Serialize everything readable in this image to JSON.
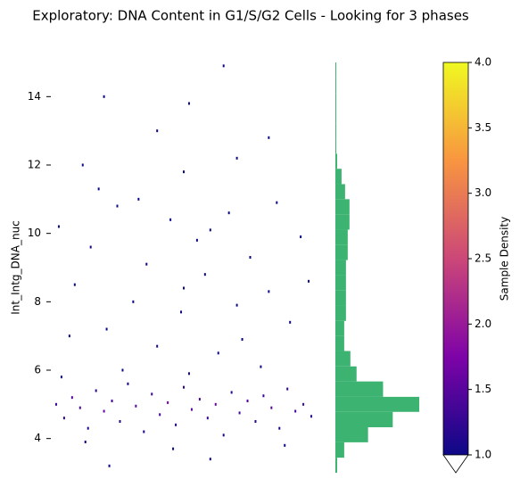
{
  "chart_data": {
    "type": "scatter",
    "title": "Exploratory: DNA Content in G1/S/G2 Cells - Looking for 3 phases",
    "y_label": "Int_Intg_DNA_nuc",
    "ylim": [
      3.0,
      15.0
    ],
    "yticks": [
      4,
      6,
      8,
      10,
      12,
      14
    ],
    "xlim": [
      0,
      1
    ],
    "points": {
      "x": [
        0.02,
        0.05,
        0.08,
        0.11,
        0.14,
        0.17,
        0.2,
        0.23,
        0.26,
        0.29,
        0.32,
        0.35,
        0.38,
        0.41,
        0.44,
        0.47,
        0.5,
        0.53,
        0.56,
        0.59,
        0.62,
        0.65,
        0.68,
        0.71,
        0.74,
        0.77,
        0.8,
        0.83,
        0.86,
        0.89,
        0.92,
        0.95,
        0.98,
        0.04,
        0.27,
        0.52,
        0.79,
        0.13,
        0.46,
        0.88,
        0.6,
        0.22,
        0.03,
        0.09,
        0.15,
        0.21,
        0.25,
        0.31,
        0.36,
        0.4,
        0.45,
        0.49,
        0.55,
        0.58,
        0.63,
        0.67,
        0.7,
        0.75,
        0.82,
        0.85,
        0.9,
        0.94,
        0.97,
        0.07,
        0.33,
        0.6,
        0.72,
        0.18,
        0.5,
        0.12,
        0.5,
        0.7,
        0.4,
        0.82,
        0.2,
        0.52,
        0.65
      ],
      "y": [
        5.0,
        4.6,
        5.2,
        4.9,
        4.3,
        5.4,
        4.8,
        5.1,
        4.5,
        5.6,
        4.95,
        4.2,
        5.3,
        4.7,
        5.05,
        4.4,
        5.5,
        4.85,
        5.15,
        4.6,
        5.0,
        4.1,
        5.35,
        4.75,
        5.1,
        4.5,
        5.25,
        4.9,
        4.3,
        5.45,
        4.8,
        5.0,
        4.65,
        5.8,
        6.0,
        5.9,
        6.1,
        3.9,
        3.7,
        3.8,
        3.4,
        3.2,
        10.2,
        8.5,
        9.6,
        7.2,
        10.8,
        8.0,
        9.1,
        6.7,
        10.4,
        7.7,
        9.8,
        8.8,
        6.5,
        10.6,
        7.9,
        9.3,
        8.3,
        10.9,
        7.4,
        9.9,
        8.6,
        7.0,
        11.0,
        10.1,
        6.9,
        11.3,
        8.4,
        12.0,
        11.8,
        12.2,
        13.0,
        12.8,
        14.0,
        13.8,
        14.9
      ],
      "density": [
        1.3,
        1.2,
        1.5,
        1.4,
        1.1,
        1.2,
        1.6,
        1.4,
        1.2,
        1.1,
        1.5,
        1.1,
        1.3,
        1.4,
        1.7,
        1.2,
        1.2,
        1.5,
        1.4,
        1.3,
        1.6,
        1.1,
        1.2,
        1.4,
        1.5,
        1.2,
        1.3,
        1.5,
        1.1,
        1.2,
        1.4,
        1.3,
        1.2,
        1.0,
        1.0,
        1.0,
        1.0,
        1.0,
        1.0,
        1.0,
        1.0,
        1.0,
        1.0,
        1.0,
        1.0,
        1.0,
        1.0,
        1.0,
        1.0,
        1.0,
        1.0,
        1.0,
        1.0,
        1.0,
        1.0,
        1.0,
        1.0,
        1.0,
        1.0,
        1.0,
        1.0,
        1.0,
        1.0,
        1.0,
        1.0,
        1.0,
        1.0,
        1.0,
        1.0,
        1.0,
        1.0,
        1.0,
        1.0,
        1.0,
        1.0,
        1.0,
        1.0
      ]
    },
    "marginal_histogram": {
      "color": "#3cb371",
      "xlim": [
        0,
        100
      ],
      "bins": [
        3.0,
        3.44,
        3.89,
        4.33,
        4.78,
        5.22,
        5.67,
        6.11,
        6.56,
        7.0,
        7.44,
        7.89,
        8.33,
        8.78,
        9.22,
        9.67,
        10.11,
        10.56,
        11.0,
        11.44,
        11.89,
        12.33,
        12.78,
        13.22,
        13.67,
        14.11,
        14.56,
        15.0
      ],
      "counts": [
        2,
        10,
        37,
        65,
        95,
        54,
        24,
        17,
        10,
        10,
        12,
        12,
        12,
        12,
        14,
        14,
        16,
        16,
        11,
        7,
        2,
        1,
        1,
        1,
        1,
        1,
        1
      ]
    },
    "colorbar": {
      "label": "Sample Density",
      "lim": [
        1.0,
        4.0
      ],
      "ticks": [
        {
          "value": 1,
          "label": "1.0"
        },
        {
          "value": 1.5,
          "label": "1.5"
        },
        {
          "value": 2,
          "label": "2.0"
        },
        {
          "value": 2.5,
          "label": "2.5"
        },
        {
          "value": 3,
          "label": "3.0"
        },
        {
          "value": 3.5,
          "label": "3.5"
        },
        {
          "value": 4,
          "label": "4.0"
        }
      ]
    }
  }
}
